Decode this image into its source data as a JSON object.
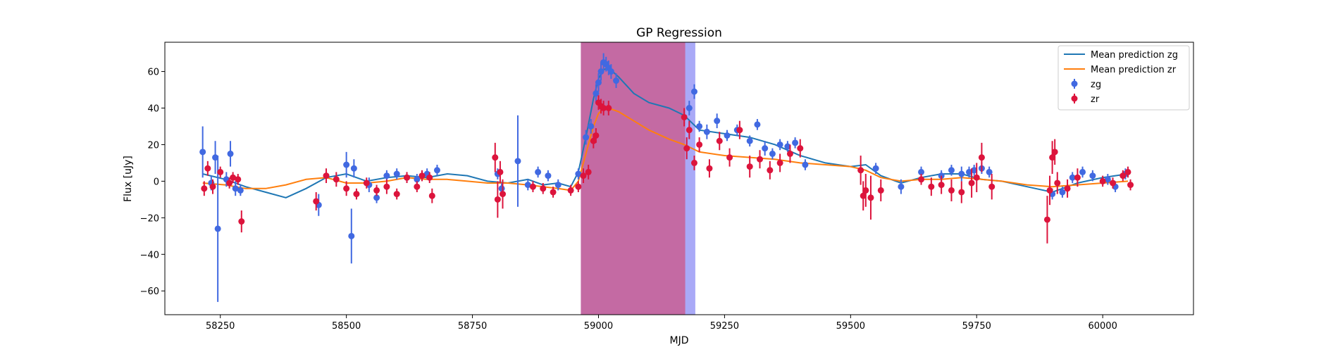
{
  "chart_data": {
    "type": "scatter",
    "title": "GP Regression",
    "xlabel": "MJD",
    "ylabel": "Flux [uJy]",
    "xlim": [
      58140,
      60180
    ],
    "ylim": [
      -73,
      76
    ],
    "xticks": [
      58250,
      58500,
      58750,
      59000,
      59250,
      59500,
      59750,
      60000
    ],
    "yticks": [
      -60,
      -40,
      -20,
      0,
      20,
      40,
      60
    ],
    "grid": false,
    "legend_position": "top-right",
    "shaded_regions": [
      {
        "x0": 58965,
        "x1": 59192,
        "color": "#a9a9f7"
      },
      {
        "x0": 58965,
        "x1": 59172,
        "color": "#c46aa3"
      }
    ],
    "series": [
      {
        "name": "Mean prediction zg",
        "kind": "line",
        "color": "#1f77b4",
        "x": [
          58215,
          58260,
          58300,
          58340,
          58380,
          58420,
          58460,
          58500,
          58540,
          58580,
          58620,
          58660,
          58700,
          58740,
          58780,
          58820,
          58860,
          58890,
          58920,
          58945,
          58960,
          58975,
          58990,
          59000,
          59010,
          59020,
          59040,
          59070,
          59100,
          59140,
          59170,
          59200,
          59250,
          59300,
          59350,
          59400,
          59450,
          59500,
          59530,
          59560,
          59600,
          59640,
          59680,
          59720,
          59760,
          59800,
          59850,
          59900,
          59950,
          60000,
          60050
        ],
        "y": [
          4,
          1,
          -3,
          -6,
          -9,
          -4,
          2,
          4,
          0,
          2,
          3,
          2,
          4,
          3,
          0,
          -1,
          1,
          -2,
          -1,
          -3,
          5,
          24,
          45,
          56,
          61,
          62,
          57,
          48,
          43,
          40,
          36,
          28,
          26,
          24,
          20,
          14,
          10,
          8,
          9,
          3,
          -1,
          2,
          4,
          4,
          1,
          0,
          -3,
          -6,
          -1,
          2,
          4
        ]
      },
      {
        "name": "Mean prediction zr",
        "kind": "line",
        "color": "#ff7f0e",
        "x": [
          58215,
          58260,
          58300,
          58340,
          58380,
          58420,
          58460,
          58500,
          58540,
          58580,
          58620,
          58660,
          58700,
          58740,
          58780,
          58820,
          58860,
          58890,
          58920,
          58945,
          58960,
          58975,
          58990,
          59000,
          59010,
          59020,
          59040,
          59070,
          59100,
          59140,
          59170,
          59200,
          59250,
          59300,
          59350,
          59400,
          59450,
          59500,
          59530,
          59560,
          59600,
          59640,
          59680,
          59720,
          59760,
          59800,
          59850,
          59900,
          59950,
          60000,
          60050
        ],
        "y": [
          -1,
          -2,
          -4,
          -4,
          -2,
          1,
          2,
          -1,
          -1,
          0,
          2,
          1,
          1,
          0,
          -1,
          -1,
          -2,
          -3,
          -4,
          -5,
          0,
          15,
          30,
          37,
          40,
          40,
          38,
          33,
          28,
          23,
          20,
          16,
          14,
          13,
          12,
          10,
          9,
          8,
          6,
          2,
          0,
          1,
          1,
          2,
          1,
          0,
          -2,
          -3,
          -2,
          -1,
          0
        ]
      },
      {
        "name": "zg",
        "kind": "errorbar",
        "color": "#4169e1",
        "x": [
          58215,
          58232,
          58240,
          58245,
          58262,
          58270,
          58280,
          58290,
          58445,
          58500,
          58510,
          58515,
          58545,
          58560,
          58580,
          58600,
          58620,
          58640,
          58660,
          58680,
          58800,
          58808,
          58840,
          58860,
          58880,
          58900,
          58920,
          58960,
          58975,
          58985,
          58995,
          59000,
          59005,
          59010,
          59015,
          59020,
          59025,
          59035,
          59180,
          59190,
          59200,
          59215,
          59235,
          59255,
          59275,
          59300,
          59315,
          59330,
          59345,
          59360,
          59375,
          59390,
          59410,
          59550,
          59600,
          59640,
          59680,
          59700,
          59720,
          59735,
          59745,
          59760,
          59775,
          59900,
          59920,
          59940,
          59960,
          59980,
          60010,
          60025,
          60045
        ],
        "y": [
          16,
          -1,
          13,
          -26,
          1,
          15,
          -4,
          -5,
          -13,
          9,
          -30,
          7,
          -2,
          -9,
          3,
          4,
          2,
          1,
          4,
          6,
          4,
          -4,
          11,
          -2,
          5,
          3,
          -2,
          4,
          24,
          30,
          48,
          54,
          60,
          65,
          64,
          62,
          60,
          55,
          40,
          49,
          30,
          27,
          33,
          25,
          28,
          22,
          31,
          18,
          15,
          20,
          19,
          21,
          9,
          7,
          -3,
          5,
          3,
          6,
          4,
          5,
          6,
          7,
          5,
          -7,
          -6,
          2,
          5,
          3,
          1,
          -3,
          4
        ],
        "yerr": [
          14,
          4,
          9,
          40,
          4,
          7,
          4,
          3,
          6,
          7,
          15,
          5,
          4,
          3,
          3,
          3,
          3,
          3,
          3,
          3,
          3,
          3,
          25,
          3,
          3,
          3,
          3,
          3,
          4,
          4,
          5,
          5,
          5,
          5,
          4,
          4,
          4,
          4,
          4,
          4,
          3,
          4,
          4,
          3,
          3,
          3,
          3,
          4,
          3,
          3,
          3,
          3,
          3,
          3,
          4,
          3,
          3,
          3,
          4,
          3,
          3,
          3,
          3,
          3,
          3,
          3,
          3,
          3,
          3,
          3,
          3
        ]
      },
      {
        "name": "zr",
        "kind": "errorbar",
        "color": "#dc143c",
        "x": [
          58218,
          58225,
          58235,
          58250,
          58268,
          58275,
          58285,
          58292,
          58440,
          58460,
          58480,
          58500,
          58520,
          58540,
          58560,
          58580,
          58600,
          58620,
          58640,
          58650,
          58665,
          58670,
          58795,
          58800,
          58805,
          58810,
          58870,
          58890,
          58910,
          58945,
          58960,
          58970,
          58980,
          58990,
          58995,
          59000,
          59005,
          59010,
          59020,
          59170,
          59175,
          59180,
          59190,
          59200,
          59220,
          59240,
          59260,
          59280,
          59300,
          59320,
          59340,
          59360,
          59380,
          59400,
          59520,
          59525,
          59530,
          59540,
          59560,
          59640,
          59660,
          59680,
          59700,
          59720,
          59740,
          59750,
          59760,
          59780,
          59890,
          59895,
          59900,
          59905,
          59910,
          59930,
          59950,
          60000,
          60020,
          60040,
          60050,
          60055
        ],
        "y": [
          -4,
          7,
          -3,
          5,
          -1,
          2,
          1,
          -22,
          -11,
          3,
          1,
          -4,
          -7,
          -1,
          -5,
          -3,
          -7,
          2,
          -3,
          3,
          2,
          -8,
          13,
          -10,
          5,
          -7,
          -3,
          -4,
          -6,
          -5,
          -3,
          3,
          5,
          22,
          25,
          43,
          41,
          40,
          40,
          35,
          18,
          28,
          10,
          20,
          7,
          22,
          13,
          28,
          8,
          12,
          6,
          10,
          15,
          18,
          6,
          -8,
          -5,
          -9,
          -5,
          1,
          -3,
          -2,
          -5,
          -6,
          -1,
          2,
          13,
          -3,
          -21,
          -5,
          13,
          16,
          -1,
          -4,
          2,
          0,
          -1,
          3,
          5,
          -2
        ],
        "yerr": [
          4,
          4,
          4,
          3,
          3,
          3,
          3,
          6,
          5,
          4,
          4,
          4,
          3,
          3,
          3,
          4,
          3,
          3,
          3,
          3,
          3,
          4,
          8,
          10,
          6,
          8,
          3,
          3,
          3,
          3,
          3,
          4,
          4,
          4,
          4,
          4,
          4,
          4,
          4,
          5,
          6,
          5,
          4,
          4,
          5,
          5,
          5,
          5,
          6,
          5,
          5,
          5,
          5,
          5,
          8,
          8,
          9,
          12,
          6,
          3,
          5,
          5,
          6,
          6,
          8,
          8,
          8,
          7,
          13,
          8,
          9,
          7,
          6,
          5,
          5,
          3,
          3,
          3,
          3,
          3
        ]
      }
    ]
  },
  "legend": {
    "items": [
      {
        "label": "Mean prediction zg",
        "marker": "line",
        "color": "#1f77b4"
      },
      {
        "label": "Mean prediction zr",
        "marker": "line",
        "color": "#ff7f0e"
      },
      {
        "label": "zg",
        "marker": "errorbar",
        "color": "#4169e1"
      },
      {
        "label": "zr",
        "marker": "errorbar",
        "color": "#dc143c"
      }
    ]
  }
}
